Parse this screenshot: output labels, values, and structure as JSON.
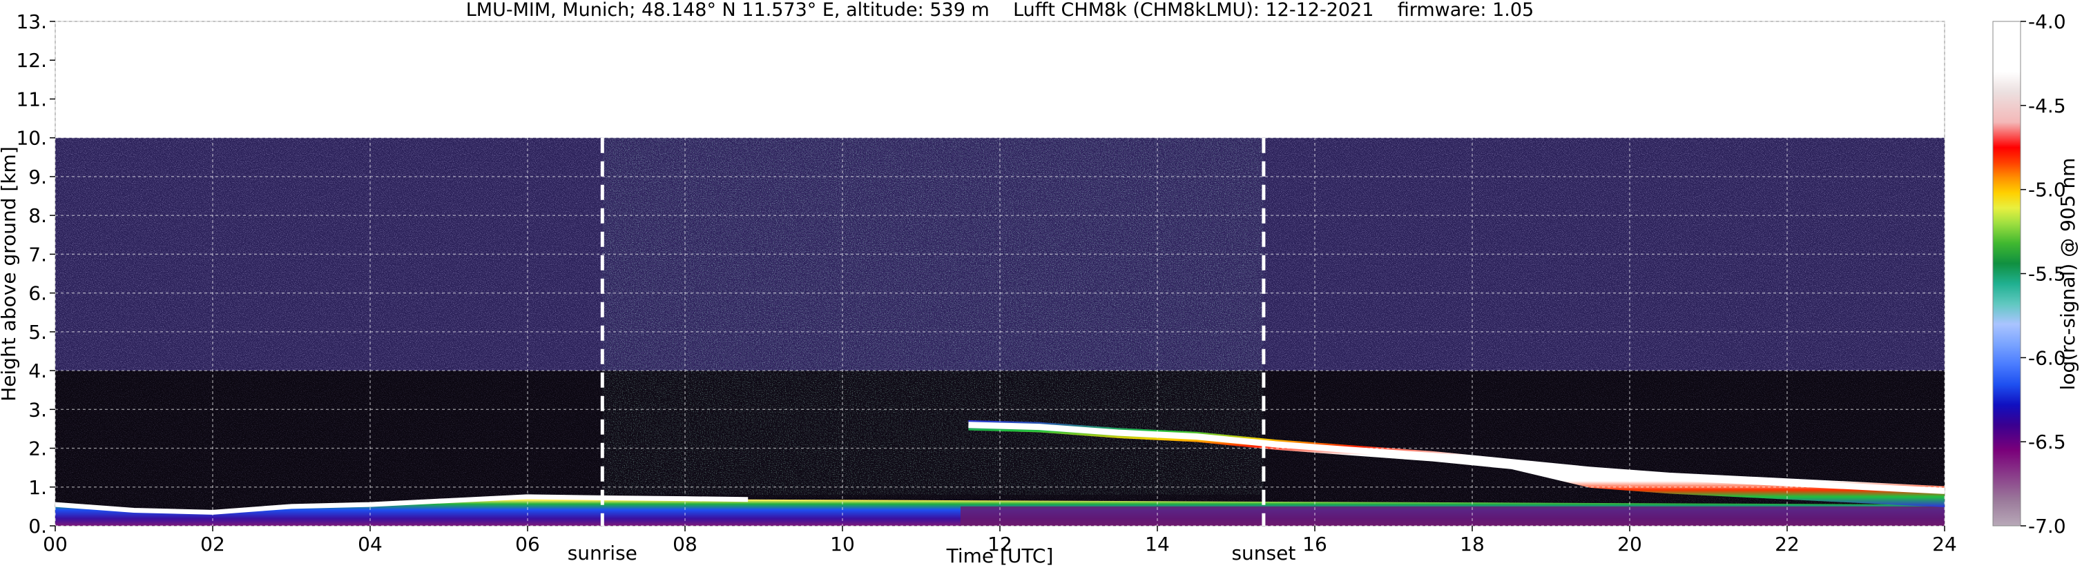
{
  "chart_data": {
    "type": "heatmap",
    "title": "LMU-MIM, Munich; 48.148° N 11.573° E, altitude: 539 m    Lufft CHM8k (CHM8kLMU): 12-12-2021    firmware: 1.05",
    "xlabel": "Time [UTC]",
    "ylabel": "Height above ground [km]",
    "xlim": [
      0,
      24
    ],
    "ylim": [
      0,
      13
    ],
    "x_ticks": [
      "00",
      "02",
      "04",
      "06",
      "08",
      "10",
      "12",
      "14",
      "16",
      "18",
      "20",
      "22",
      "24"
    ],
    "y_ticks": [
      "0.",
      "1.",
      "2.",
      "3.",
      "4.",
      "5.",
      "6.",
      "7.",
      "8.",
      "9.",
      "10.",
      "11.",
      "12.",
      "13."
    ],
    "grid": true,
    "data_ceiling_km": 10,
    "annotations": [
      {
        "label": "sunrise",
        "x": 6.95
      },
      {
        "label": "sunset",
        "x": 15.35
      }
    ],
    "colorbar": {
      "label": "log(rc-signal) @ 905 nm",
      "range": [
        -7.0,
        -4.0
      ],
      "ticks": [
        "-7.0",
        "-6.5",
        "-6.0",
        "-5.5",
        "-5.0",
        "-4.5",
        "-4.0"
      ]
    },
    "cloud_top": [
      {
        "x": 11.6,
        "y": 2.6
      },
      {
        "x": 12.5,
        "y": 2.55
      },
      {
        "x": 13.5,
        "y": 2.4
      },
      {
        "x": 14.5,
        "y": 2.3
      },
      {
        "x": 15.5,
        "y": 2.1
      },
      {
        "x": 16.5,
        "y": 1.95
      },
      {
        "x": 17.5,
        "y": 1.8
      },
      {
        "x": 18.5,
        "y": 1.6
      },
      {
        "x": 19.5,
        "y": 1.4
      },
      {
        "x": 20.5,
        "y": 1.25
      },
      {
        "x": 21.5,
        "y": 1.15
      },
      {
        "x": 22.5,
        "y": 1.05
      },
      {
        "x": 23.5,
        "y": 0.95
      },
      {
        "x": 24.0,
        "y": 0.9
      }
    ],
    "boundary_layer_top": [
      {
        "x": 0.0,
        "y": 0.55
      },
      {
        "x": 1.0,
        "y": 0.4
      },
      {
        "x": 2.0,
        "y": 0.35
      },
      {
        "x": 3.0,
        "y": 0.5
      },
      {
        "x": 4.0,
        "y": 0.55
      },
      {
        "x": 5.0,
        "y": 0.65
      },
      {
        "x": 6.0,
        "y": 0.75
      },
      {
        "x": 7.0,
        "y": 0.72
      },
      {
        "x": 8.0,
        "y": 0.7
      },
      {
        "x": 8.8,
        "y": 0.68
      }
    ]
  }
}
